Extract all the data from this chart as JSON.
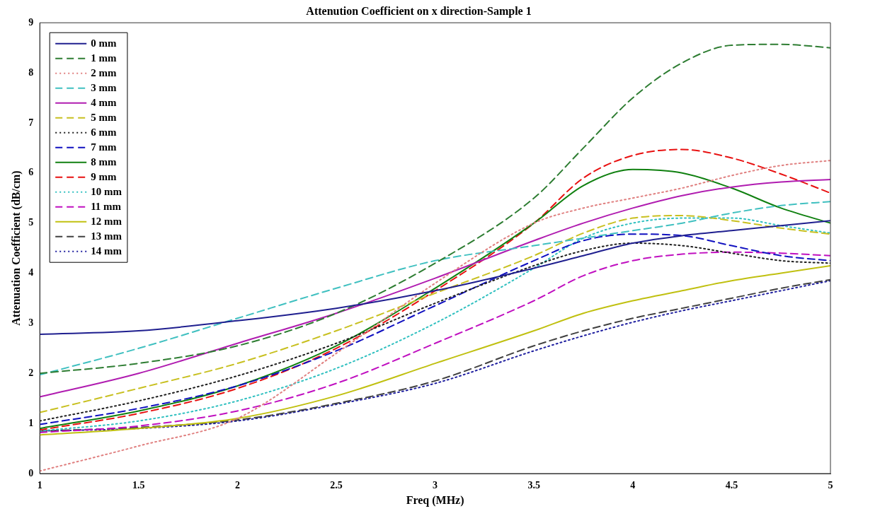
{
  "chart_data": {
    "type": "line",
    "title": "Attenution Coefficient on x direction-Sample 1",
    "xlabel": "Freq (MHz)",
    "ylabel": "Attenuation Coefficient (dB/cm)",
    "x": [
      1,
      1.5,
      2,
      2.5,
      3,
      3.5,
      3.75,
      4,
      4.25,
      4.5,
      4.75,
      5
    ],
    "xlim": [
      1,
      5
    ],
    "xticks": [
      1,
      1.5,
      2,
      2.5,
      3,
      3.5,
      4,
      4.5,
      5
    ],
    "ylim": [
      0,
      9
    ],
    "yticks": [
      0,
      1,
      2,
      3,
      4,
      5,
      6,
      7,
      8,
      9
    ],
    "grid": false,
    "legend": "top left",
    "marker": "none",
    "series": [
      {
        "name": "0 mm",
        "color": "#1f1f8f",
        "line_style": "solid",
        "values": [
          2.78,
          2.85,
          3.05,
          3.3,
          3.65,
          4.1,
          4.35,
          4.6,
          4.75,
          4.85,
          4.95,
          5.05
        ]
      },
      {
        "name": "1 mm",
        "color": "#2e7d32",
        "line_style": "dashed",
        "values": [
          2.0,
          2.2,
          2.55,
          3.2,
          4.2,
          5.5,
          6.5,
          7.5,
          8.2,
          8.55,
          8.57,
          8.5
        ]
      },
      {
        "name": "2 mm",
        "color": "#e08080",
        "line_style": "dotted",
        "values": [
          0.05,
          0.55,
          1.1,
          2.4,
          3.8,
          5.0,
          5.3,
          5.5,
          5.7,
          5.95,
          6.15,
          6.25
        ]
      },
      {
        "name": "3 mm",
        "color": "#40c0c0",
        "line_style": "dashed",
        "values": [
          1.97,
          2.5,
          3.1,
          3.7,
          4.25,
          4.55,
          4.7,
          4.85,
          5.0,
          5.2,
          5.35,
          5.43
        ]
      },
      {
        "name": "4 mm",
        "color": "#b01cb0",
        "line_style": "solid",
        "values": [
          1.53,
          2.0,
          2.6,
          3.2,
          3.9,
          4.65,
          5.0,
          5.3,
          5.55,
          5.72,
          5.82,
          5.87
        ]
      },
      {
        "name": "5 mm",
        "color": "#c8c020",
        "line_style": "dashed",
        "values": [
          1.22,
          1.7,
          2.2,
          2.85,
          3.6,
          4.35,
          4.8,
          5.1,
          5.15,
          5.05,
          4.9,
          4.78
        ]
      },
      {
        "name": "6 mm",
        "color": "#202020",
        "line_style": "dotted",
        "values": [
          1.05,
          1.45,
          1.95,
          2.6,
          3.4,
          4.15,
          4.45,
          4.6,
          4.55,
          4.4,
          4.25,
          4.2
        ]
      },
      {
        "name": "7 mm",
        "color": "#1010c0",
        "line_style": "dashed",
        "values": [
          0.98,
          1.3,
          1.75,
          2.45,
          3.35,
          4.25,
          4.65,
          4.78,
          4.75,
          4.55,
          4.35,
          4.25
        ]
      },
      {
        "name": "8 mm",
        "color": "#108010",
        "line_style": "solid",
        "values": [
          0.9,
          1.25,
          1.75,
          2.55,
          3.7,
          5.0,
          5.75,
          6.07,
          6.0,
          5.7,
          5.3,
          5.0
        ]
      },
      {
        "name": "9 mm",
        "color": "#e81010",
        "line_style": "dashed",
        "values": [
          0.87,
          1.2,
          1.7,
          2.5,
          3.65,
          5.0,
          5.9,
          6.35,
          6.47,
          6.3,
          5.98,
          5.6
        ]
      },
      {
        "name": "10 mm",
        "color": "#30c0c0",
        "line_style": "dotted",
        "values": [
          0.85,
          1.05,
          1.45,
          2.1,
          3.0,
          4.1,
          4.7,
          5.0,
          5.1,
          5.1,
          4.95,
          4.8
        ]
      },
      {
        "name": "11 mm",
        "color": "#c010c0",
        "line_style": "dashed",
        "values": [
          0.82,
          0.95,
          1.25,
          1.8,
          2.6,
          3.45,
          3.95,
          4.25,
          4.38,
          4.42,
          4.4,
          4.35
        ]
      },
      {
        "name": "12 mm",
        "color": "#c0c010",
        "line_style": "solid",
        "values": [
          0.77,
          0.9,
          1.1,
          1.55,
          2.2,
          2.85,
          3.2,
          3.45,
          3.65,
          3.85,
          4.0,
          4.15
        ]
      },
      {
        "name": "13 mm",
        "color": "#404040",
        "line_style": "dashed",
        "values": [
          0.85,
          0.92,
          1.07,
          1.4,
          1.85,
          2.55,
          2.85,
          3.1,
          3.3,
          3.5,
          3.7,
          3.87
        ]
      },
      {
        "name": "14 mm",
        "color": "#2020a0",
        "line_style": "dotted",
        "values": [
          0.85,
          0.9,
          1.05,
          1.38,
          1.8,
          2.45,
          2.75,
          3.02,
          3.25,
          3.45,
          3.65,
          3.85
        ]
      }
    ]
  }
}
